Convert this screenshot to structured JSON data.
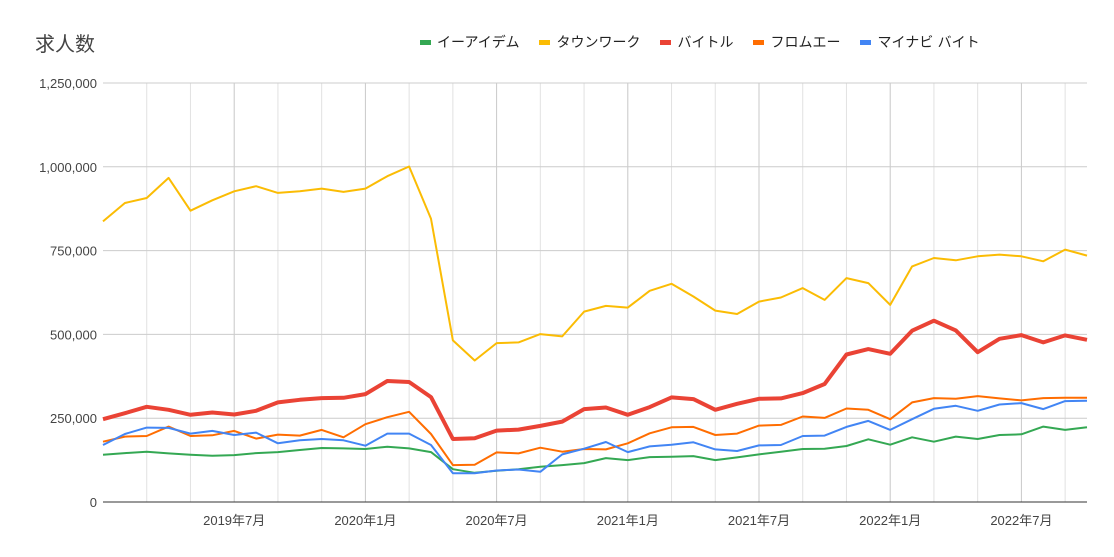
{
  "chart_data": {
    "type": "line",
    "title": "求人数",
    "xlabel": "",
    "ylabel": "",
    "ylim": [
      0,
      1250000
    ],
    "yticks": [
      "0",
      "250,000",
      "500,000",
      "750,000",
      "1,000,000",
      "1,250,000"
    ],
    "ytick_values": [
      0,
      250000,
      500000,
      750000,
      1000000,
      1250000
    ],
    "xtick_labels": [
      {
        "month": "2019-07",
        "label": "2019年7月"
      },
      {
        "month": "2020-01",
        "label": "2020年1月"
      },
      {
        "month": "2020-07",
        "label": "2020年7月"
      },
      {
        "month": "2021-01",
        "label": "2021年1月"
      },
      {
        "month": "2021-07",
        "label": "2021年7月"
      },
      {
        "month": "2022-01",
        "label": "2022年1月"
      },
      {
        "month": "2022-07",
        "label": "2022年7月"
      }
    ],
    "grid": true,
    "legend_position": "top",
    "x_start": "2019-01",
    "x_end": "2022-10",
    "series": [
      {
        "name": "イーアイデム",
        "color": "#34a853",
        "values": [
          141000,
          146000,
          150000,
          145000,
          141000,
          138000,
          140000,
          146000,
          149000,
          155000,
          161000,
          160000,
          158000,
          165000,
          160000,
          149000,
          98000,
          87000,
          93000,
          98000,
          105000,
          110000,
          116000,
          131000,
          125000,
          134000,
          135000,
          137000,
          125000,
          133000,
          142000,
          150000,
          158000,
          159000,
          167000,
          187000,
          171000,
          193000,
          180000,
          195000,
          188000,
          200000,
          202000,
          225000,
          215000,
          223000
        ]
      },
      {
        "name": "タウンワーク",
        "color": "#fbbc04",
        "values": [
          837000,
          892000,
          907000,
          967000,
          869000,
          900000,
          927000,
          942000,
          922000,
          927000,
          935000,
          925000,
          935000,
          972000,
          1001000,
          845000,
          482000,
          422000,
          474000,
          476000,
          501000,
          494000,
          568000,
          585000,
          580000,
          630000,
          651000,
          613000,
          571000,
          561000,
          598000,
          610000,
          638000,
          603000,
          668000,
          653000,
          588000,
          703000,
          728000,
          721000,
          733000,
          738000,
          733000,
          718000,
          753000,
          735000
        ]
      },
      {
        "name": "バイトル",
        "color": "#ea4335",
        "values": [
          247000,
          265000,
          284000,
          275000,
          260000,
          267000,
          261000,
          272000,
          297000,
          305000,
          310000,
          311000,
          322000,
          361000,
          358000,
          313000,
          188000,
          190000,
          213000,
          216000,
          227000,
          240000,
          277000,
          282000,
          260000,
          283000,
          312000,
          307000,
          275000,
          293000,
          308000,
          309000,
          325000,
          352000,
          440000,
          456000,
          442000,
          511000,
          541000,
          512000,
          447000,
          487000,
          498000,
          476000,
          497000,
          484000
        ]
      },
      {
        "name": "フロムエー",
        "color": "#ff6d01",
        "values": [
          180000,
          195000,
          197000,
          225000,
          197000,
          199000,
          212000,
          189000,
          201000,
          198000,
          215000,
          193000,
          232000,
          253000,
          269000,
          203000,
          110000,
          111000,
          148000,
          145000,
          162000,
          150000,
          158000,
          157000,
          175000,
          205000,
          223000,
          224000,
          200000,
          204000,
          228000,
          230000,
          255000,
          251000,
          279000,
          275000,
          247000,
          297000,
          310000,
          308000,
          316000,
          309000,
          303000,
          310000,
          311000,
          311000
        ]
      },
      {
        "name": "マイナビ バイト",
        "color": "#4285f4",
        "values": [
          170000,
          203000,
          222000,
          221000,
          204000,
          212000,
          200000,
          207000,
          175000,
          184000,
          188000,
          184000,
          168000,
          204000,
          204000,
          170000,
          86000,
          86000,
          94000,
          97000,
          90000,
          142000,
          159000,
          179000,
          149000,
          166000,
          171000,
          178000,
          157000,
          152000,
          169000,
          170000,
          197000,
          198000,
          224000,
          242000,
          215000,
          247000,
          278000,
          287000,
          272000,
          291000,
          295000,
          277000,
          301000,
          302000
        ]
      }
    ]
  }
}
